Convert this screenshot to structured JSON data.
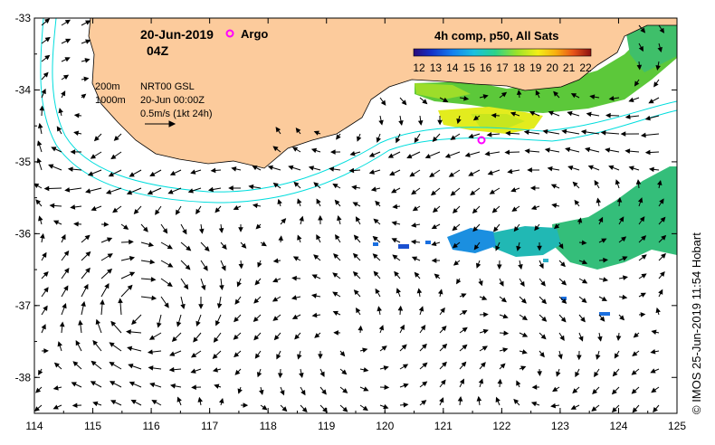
{
  "map": {
    "date_label": "20-Jun-2019",
    "time_label": "04Z",
    "argo_label": "Argo",
    "colorbar_title": "4h comp, p50, All Sats",
    "colorbar_ticks": [
      "12",
      "13",
      "14",
      "15",
      "16",
      "17",
      "18",
      "19",
      "20",
      "21",
      "22"
    ],
    "legend": {
      "depth_200": "200m",
      "depth_1000": "1000m",
      "product": "NRT00 GSL",
      "datetime": "20-Jun 00:00Z",
      "scale": "0.5m/s (1kt 24h)"
    },
    "x_ticks": [
      "114",
      "115",
      "116",
      "117",
      "118",
      "119",
      "120",
      "121",
      "122",
      "123",
      "124",
      "125"
    ],
    "y_ticks": [
      "-33",
      "-34",
      "-35",
      "-36",
      "-37",
      "-38"
    ],
    "credit": "© IMOS 25-Jun-2019 11:54 Hobart",
    "colors": {
      "land": "#FCCB9C",
      "contours": "#00DDDD",
      "argo": "#FF00FF",
      "ocean": "#FFFFFF"
    }
  },
  "chart_data": {
    "type": "map",
    "region": {
      "lon_range": [
        114,
        125
      ],
      "lat_range": [
        -38.5,
        -33
      ]
    },
    "sst_range_degC": [
      12,
      22
    ],
    "argo_floats": [
      {
        "lon": 121.65,
        "lat": -34.72
      }
    ],
    "current_scale_mps": 0.5
  }
}
